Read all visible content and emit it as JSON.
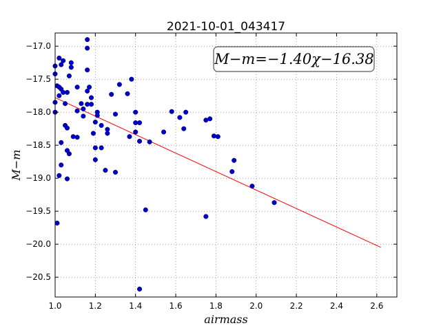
{
  "chart_data": {
    "type": "scatter",
    "title": "2021-10-01_043417",
    "xlabel": "airmass",
    "ylabel": "M−m",
    "xlim": [
      1.0,
      2.7
    ],
    "ylim": [
      -20.8,
      -16.8
    ],
    "y_inverted": true,
    "grid": true,
    "x_ticks": [
      1.0,
      1.2,
      1.4,
      1.6,
      1.8,
      2.0,
      2.2,
      2.4,
      2.6
    ],
    "x_tick_labels": [
      "1.0",
      "1.2",
      "1.4",
      "1.6",
      "1.8",
      "2.0",
      "2.2",
      "2.4",
      "2.6"
    ],
    "y_ticks": [
      -17.0,
      -17.5,
      -18.0,
      -18.5,
      -19.0,
      -19.5,
      -20.0,
      -20.5
    ],
    "y_tick_labels": [
      "−17.0",
      "−17.5",
      "−18.0",
      "−18.5",
      "−19.0",
      "−19.5",
      "−20.0",
      "−20.5"
    ],
    "annotation": "M−m=−1.40χ−16.38",
    "fit": {
      "slope": -1.4,
      "intercept": -16.38,
      "x_range": [
        1.0,
        2.62
      ],
      "color": "#ff0000"
    },
    "marker_color": "#0000c0",
    "points": [
      [
        1.0,
        -17.3
      ],
      [
        1.0,
        -17.42
      ],
      [
        1.0,
        -17.85
      ],
      [
        1.0,
        -18.0
      ],
      [
        1.01,
        -17.6
      ],
      [
        1.02,
        -17.18
      ],
      [
        1.02,
        -17.62
      ],
      [
        1.03,
        -17.28
      ],
      [
        1.03,
        -17.65
      ],
      [
        1.04,
        -17.22
      ],
      [
        1.04,
        -17.7
      ],
      [
        1.02,
        -17.75
      ],
      [
        1.05,
        -17.87
      ],
      [
        1.06,
        -17.7
      ],
      [
        1.07,
        -17.45
      ],
      [
        1.08,
        -17.25
      ],
      [
        1.08,
        -17.32
      ],
      [
        1.11,
        -17.62
      ],
      [
        1.13,
        -17.87
      ],
      [
        1.14,
        -17.95
      ],
      [
        1.16,
        -16.9
      ],
      [
        1.16,
        -17.03
      ],
      [
        1.16,
        -17.36
      ],
      [
        1.17,
        -17.62
      ],
      [
        1.16,
        -17.88
      ],
      [
        1.18,
        -17.88
      ],
      [
        1.18,
        -17.78
      ],
      [
        1.16,
        -17.68
      ],
      [
        1.11,
        -17.98
      ],
      [
        1.14,
        -18.06
      ],
      [
        1.2,
        -18.15
      ],
      [
        1.21,
        -18.0
      ],
      [
        1.21,
        -18.05
      ],
      [
        1.05,
        -18.2
      ],
      [
        1.06,
        -18.24
      ],
      [
        1.09,
        -18.37
      ],
      [
        1.11,
        -18.38
      ],
      [
        1.19,
        -18.32
      ],
      [
        1.03,
        -18.46
      ],
      [
        1.2,
        -18.54
      ],
      [
        1.23,
        -18.2
      ],
      [
        1.23,
        -18.54
      ],
      [
        1.26,
        -18.26
      ],
      [
        1.26,
        -18.32
      ],
      [
        1.28,
        -17.73
      ],
      [
        1.3,
        -18.03
      ],
      [
        1.32,
        -17.58
      ],
      [
        1.36,
        -17.72
      ],
      [
        1.38,
        -17.5
      ],
      [
        1.37,
        -18.37
      ],
      [
        1.4,
        -18.0
      ],
      [
        1.4,
        -18.16
      ],
      [
        1.4,
        -18.3
      ],
      [
        1.42,
        -18.16
      ],
      [
        1.42,
        -18.44
      ],
      [
        1.47,
        -18.45
      ],
      [
        1.54,
        -18.3
      ],
      [
        1.58,
        -17.99
      ],
      [
        1.62,
        -18.08
      ],
      [
        1.64,
        -18.25
      ],
      [
        1.65,
        -18.0
      ],
      [
        1.75,
        -18.12
      ],
      [
        1.77,
        -18.1
      ],
      [
        1.79,
        -18.36
      ],
      [
        1.81,
        -18.37
      ],
      [
        1.06,
        -18.58
      ],
      [
        1.07,
        -18.63
      ],
      [
        1.2,
        -18.72
      ],
      [
        1.03,
        -18.8
      ],
      [
        1.02,
        -18.96
      ],
      [
        1.06,
        -19.01
      ],
      [
        1.25,
        -18.88
      ],
      [
        1.3,
        -18.91
      ],
      [
        1.89,
        -18.73
      ],
      [
        1.88,
        -18.9
      ],
      [
        1.98,
        -19.12
      ],
      [
        2.09,
        -19.37
      ],
      [
        1.45,
        -19.48
      ],
      [
        1.75,
        -19.58
      ],
      [
        1.01,
        -19.68
      ],
      [
        1.42,
        -20.68
      ]
    ]
  }
}
